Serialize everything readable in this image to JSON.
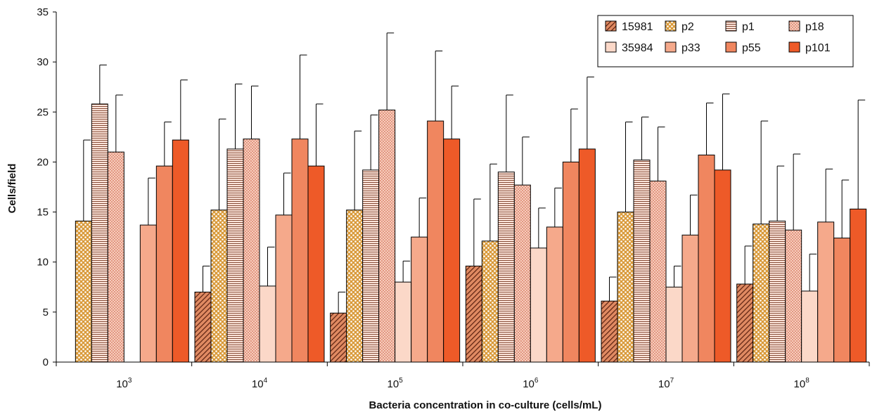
{
  "chart_data": {
    "type": "bar",
    "xlabel": "Bacteria concentration in co-culture (cells/mL)",
    "ylabel": "Cells/field",
    "ylim": [
      0,
      35
    ],
    "yticks": [
      0,
      5,
      10,
      15,
      20,
      25,
      30,
      35
    ],
    "category_base": "10",
    "category_exponents": [
      "3",
      "4",
      "5",
      "6",
      "7",
      "8"
    ],
    "grid": false,
    "legend_position": "top-right",
    "series": [
      {
        "name": "15981",
        "pattern": "diagonal-dark",
        "color": "#c8502a",
        "values": [
          0,
          7.0,
          4.9,
          9.6,
          6.1,
          7.8
        ],
        "errors": [
          0,
          2.6,
          2.1,
          6.7,
          2.4,
          3.8
        ]
      },
      {
        "name": "p2",
        "pattern": "dots-gold",
        "color": "#d99a3a",
        "values": [
          14.1,
          15.2,
          15.2,
          12.1,
          15.0,
          13.8
        ],
        "errors": [
          8.1,
          9.1,
          7.9,
          7.7,
          9.0,
          10.3
        ]
      },
      {
        "name": "p1",
        "pattern": "horizontal-lines",
        "color": "#f3c7b5",
        "values": [
          25.8,
          21.3,
          19.2,
          19.0,
          20.2,
          14.1
        ],
        "errors": [
          3.9,
          6.5,
          5.5,
          7.7,
          4.3,
          5.5
        ]
      },
      {
        "name": "p18",
        "pattern": "dots-fine",
        "color": "#f1b9a5",
        "values": [
          21.0,
          22.3,
          25.2,
          17.7,
          18.1,
          13.2
        ],
        "errors": [
          5.7,
          5.3,
          7.7,
          4.8,
          5.4,
          7.6
        ]
      },
      {
        "name": "35984",
        "pattern": "solid",
        "color": "#fbd8c8",
        "values": [
          0,
          7.6,
          8.0,
          11.4,
          7.5,
          7.1
        ],
        "errors": [
          0,
          3.9,
          2.1,
          4.0,
          2.1,
          3.7
        ]
      },
      {
        "name": "p33",
        "pattern": "solid",
        "color": "#f5a98b",
        "values": [
          13.7,
          14.7,
          12.5,
          13.5,
          12.7,
          14.0
        ],
        "errors": [
          4.7,
          4.2,
          3.9,
          3.9,
          4.0,
          5.3
        ]
      },
      {
        "name": "p55",
        "pattern": "solid",
        "color": "#f0865f",
        "values": [
          19.6,
          22.3,
          24.1,
          20.0,
          20.7,
          12.4
        ],
        "errors": [
          4.4,
          8.4,
          7.0,
          5.3,
          5.2,
          5.8
        ]
      },
      {
        "name": "p101",
        "pattern": "solid",
        "color": "#ee5a28",
        "values": [
          22.2,
          19.6,
          22.3,
          21.3,
          19.2,
          15.3
        ],
        "errors": [
          6.0,
          6.2,
          5.3,
          7.2,
          7.6,
          10.9
        ]
      }
    ]
  }
}
